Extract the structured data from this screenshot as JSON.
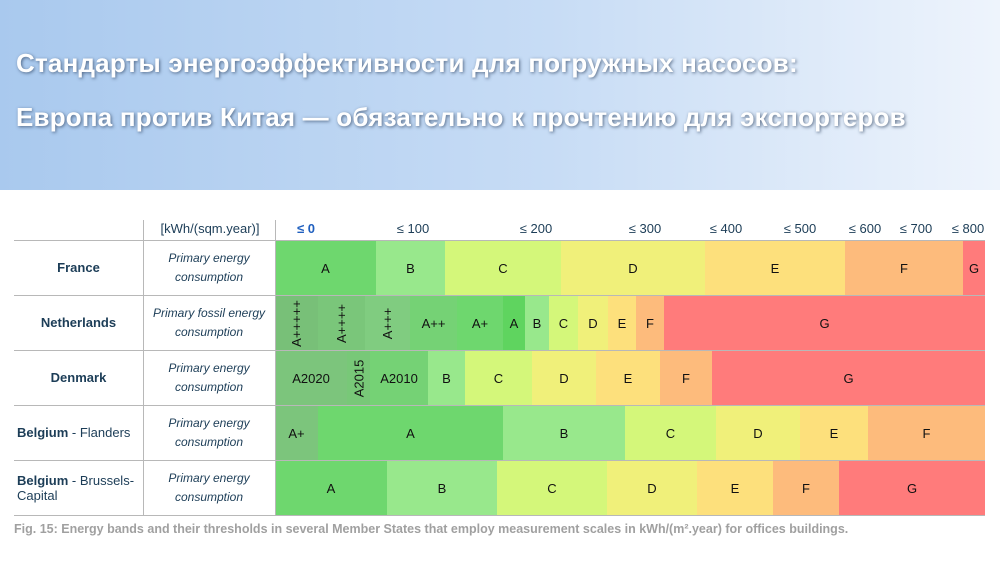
{
  "header": {
    "title_lines": [
      "Стандарты энергоэффективности для погружных насосов:",
      "Европа против Китая — обязательно к прочтению для экспортеров"
    ]
  },
  "table": {
    "unit": "[kWh/(sqm.year)]",
    "thresholds": [
      "≤ 0",
      "≤ 100",
      "≤ 200",
      "≤ 300",
      "≤ 400",
      "≤ 500",
      "≤ 600",
      "≤ 700",
      "≤ 800"
    ],
    "rows": [
      {
        "country": "France",
        "consumption": "Primary energy consumption",
        "bands": [
          "A",
          "B",
          "C",
          "D",
          "E",
          "F",
          "G"
        ]
      },
      {
        "country": "Netherlands",
        "consumption": "Primary fossil energy consumption",
        "bands": [
          "A+++++",
          "A++++",
          "A+++",
          "A++",
          "A+",
          "A",
          "B",
          "C",
          "D",
          "E",
          "F",
          "G"
        ]
      },
      {
        "country": "Denmark",
        "consumption": "Primary energy consumption",
        "bands": [
          "A2020",
          "A2015",
          "A2010",
          "B",
          "C",
          "D",
          "E",
          "F",
          "G"
        ]
      },
      {
        "country": "Belgium",
        "region": "- Flanders",
        "consumption": "Primary energy consumption",
        "bands": [
          "A+",
          "A",
          "B",
          "C",
          "D",
          "E",
          "F"
        ]
      },
      {
        "country": "Belgium",
        "region": "- Brussels-Capital",
        "consumption": "Primary energy consumption",
        "bands": [
          "A",
          "B",
          "C",
          "D",
          "E",
          "F",
          "G"
        ]
      }
    ]
  },
  "caption": "Fig. 15: Energy bands and their thresholds in several Member States that employ measurement scales in kWh/(m².year) for offices buildings."
}
